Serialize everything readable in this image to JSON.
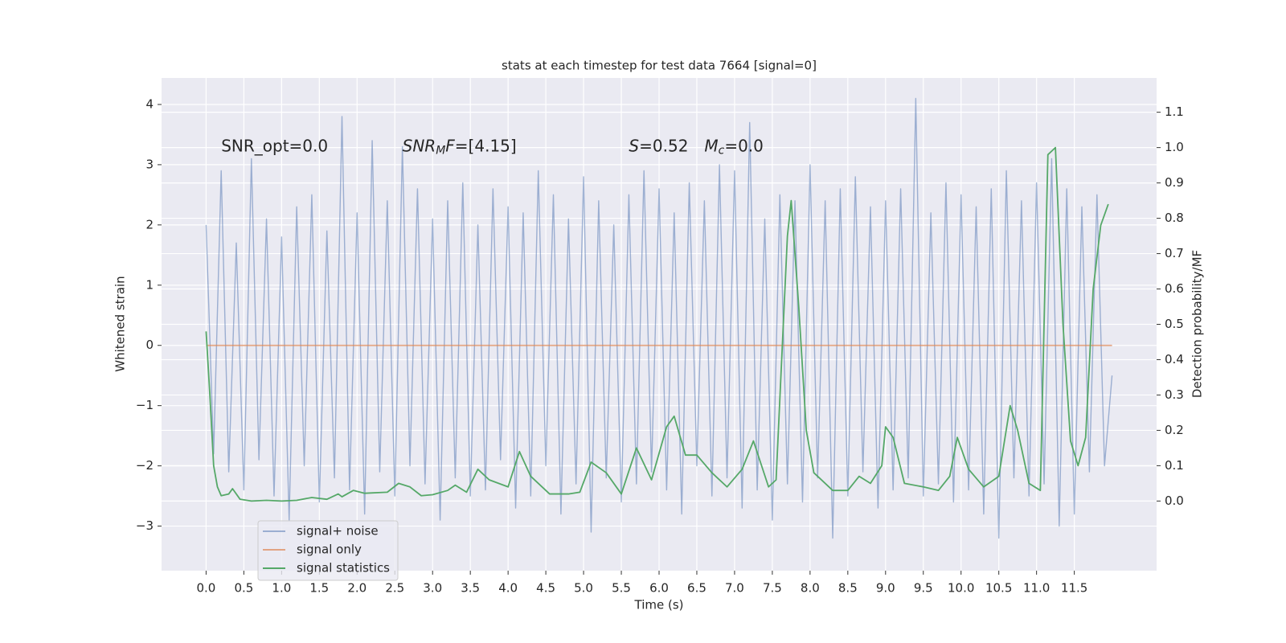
{
  "chart_data": {
    "type": "line",
    "title": "stats at each timestep for test data 7664 [signal=0]",
    "x_label": "Time (s)",
    "y_label": "Whitened strain",
    "y2_label": "Detection probability/MF",
    "xlim": [
      -0.59,
      12.59
    ],
    "ylim": [
      -3.74,
      4.44
    ],
    "y2lim": [
      -0.197,
      1.197
    ],
    "xticks": [
      {
        "value": 0,
        "label": "0.0"
      },
      {
        "value": 0.5,
        "label": "0.5"
      },
      {
        "value": 1,
        "label": "1.0"
      },
      {
        "value": 1.5,
        "label": "1.5"
      },
      {
        "value": 2,
        "label": "2.0"
      },
      {
        "value": 2.5,
        "label": "2.5"
      },
      {
        "value": 3,
        "label": "3.0"
      },
      {
        "value": 3.5,
        "label": "3.5"
      },
      {
        "value": 4,
        "label": "4.0"
      },
      {
        "value": 4.5,
        "label": "4.5"
      },
      {
        "value": 5,
        "label": "5.0"
      },
      {
        "value": 5.5,
        "label": "5.5"
      },
      {
        "value": 6,
        "label": "6.0"
      },
      {
        "value": 6.5,
        "label": "6.5"
      },
      {
        "value": 7,
        "label": "7.0"
      },
      {
        "value": 7.5,
        "label": "7.5"
      },
      {
        "value": 8,
        "label": "8.0"
      },
      {
        "value": 8.5,
        "label": "8.5"
      },
      {
        "value": 9,
        "label": "9.0"
      },
      {
        "value": 9.5,
        "label": "9.5"
      },
      {
        "value": 10,
        "label": "10.0"
      },
      {
        "value": 10.5,
        "label": "10.5"
      },
      {
        "value": 11,
        "label": "11.0"
      },
      {
        "value": 11.5,
        "label": "11.5"
      }
    ],
    "yticks": [
      {
        "value": -3,
        "label": "−3"
      },
      {
        "value": -2,
        "label": "−2"
      },
      {
        "value": -1,
        "label": "−1"
      },
      0,
      1,
      2,
      3,
      4
    ],
    "y2ticks": [
      {
        "value": 0,
        "label": "0.0"
      },
      {
        "value": 0.1,
        "label": "0.1"
      },
      {
        "value": 0.2,
        "label": "0.2"
      },
      {
        "value": 0.3,
        "label": "0.3"
      },
      {
        "value": 0.4,
        "label": "0.4"
      },
      {
        "value": 0.5,
        "label": "0.5"
      },
      {
        "value": 0.6,
        "label": "0.6"
      },
      {
        "value": 0.7,
        "label": "0.7"
      },
      {
        "value": 0.8,
        "label": "0.8"
      },
      {
        "value": 0.9,
        "label": "0.9"
      },
      {
        "value": 1,
        "label": "1.0"
      },
      {
        "value": 1.1,
        "label": "1.1"
      }
    ],
    "grid": true,
    "legend": "lower left",
    "annotations": [
      [
        {
          "text": "SNR_opt=0.0",
          "style": "normal"
        }
      ],
      [
        {
          "text": "SNR",
          "style": "italic"
        },
        {
          "text": "M",
          "style": "sub"
        },
        {
          "text": "F",
          "style": "italic"
        },
        {
          "text": "=[4.15]",
          "style": "normal"
        }
      ],
      [
        {
          "text": "S",
          "style": "italic"
        },
        {
          "text": "=0.52",
          "style": "normal"
        }
      ],
      [
        {
          "text": "M",
          "style": "italic"
        },
        {
          "text": "c",
          "style": "sub"
        },
        {
          "text": "=0.0",
          "style": "normal"
        }
      ]
    ],
    "series": [
      {
        "name": "signal+ noise",
        "color": "#4c72b0",
        "opacity": 0.5,
        "x": [
          0,
          0.1,
          0.2,
          0.3,
          0.4,
          0.5,
          0.6,
          0.7,
          0.8,
          0.9,
          1,
          1.1,
          1.2,
          1.3,
          1.4,
          1.5,
          1.6,
          1.7,
          1.8,
          1.9,
          2,
          2.1,
          2.2,
          2.3,
          2.4,
          2.5,
          2.6,
          2.7,
          2.8,
          2.9,
          3,
          3.1,
          3.2,
          3.3,
          3.4,
          3.5,
          3.6,
          3.7,
          3.8,
          3.9,
          4,
          4.1,
          4.2,
          4.3,
          4.4,
          4.5,
          4.6,
          4.7,
          4.8,
          4.9,
          5,
          5.1,
          5.2,
          5.3,
          5.4,
          5.5,
          5.6,
          5.7,
          5.8,
          5.9,
          6,
          6.1,
          6.2,
          6.3,
          6.4,
          6.5,
          6.6,
          6.7,
          6.8,
          6.9,
          7,
          7.1,
          7.2,
          7.3,
          7.4,
          7.5,
          7.6,
          7.7,
          7.8,
          7.9,
          8,
          8.1,
          8.2,
          8.3,
          8.4,
          8.5,
          8.6,
          8.7,
          8.8,
          8.9,
          9,
          9.1,
          9.2,
          9.3,
          9.4,
          9.5,
          9.6,
          9.7,
          9.8,
          9.9,
          10,
          10.1,
          10.2,
          10.3,
          10.4,
          10.5,
          10.6,
          10.7,
          10.8,
          10.9,
          11,
          11.1,
          11.2,
          11.3,
          11.4,
          11.5,
          11.6,
          11.7,
          11.8,
          11.9,
          12
        ],
        "values": [
          2.0,
          -1.8,
          2.9,
          -2.1,
          1.7,
          -2.4,
          3.1,
          -1.9,
          2.1,
          -2.5,
          1.8,
          -2.9,
          2.3,
          -2.0,
          2.5,
          -2.6,
          1.9,
          -2.2,
          3.8,
          -2.4,
          2.2,
          -2.8,
          3.4,
          -2.1,
          2.4,
          -2.5,
          3.3,
          -2.0,
          2.6,
          -2.3,
          2.1,
          -2.9,
          2.4,
          -2.2,
          2.7,
          -2.5,
          2.0,
          -2.4,
          2.6,
          -1.9,
          2.3,
          -2.7,
          2.2,
          -2.5,
          2.9,
          -2.0,
          2.5,
          -2.8,
          2.1,
          -2.3,
          2.8,
          -3.1,
          2.4,
          -2.2,
          2.0,
          -2.6,
          2.5,
          -2.3,
          2.9,
          -2.1,
          2.6,
          -2.4,
          2.2,
          -2.8,
          2.7,
          -2.0,
          2.4,
          -2.5,
          3.0,
          -2.2,
          2.9,
          -2.7,
          3.7,
          -2.4,
          2.1,
          -2.9,
          2.5,
          -2.3,
          2.4,
          -2.6,
          3.0,
          -2.2,
          2.4,
          -3.2,
          2.6,
          -2.5,
          2.8,
          -2.1,
          2.3,
          -2.7,
          2.4,
          -2.4,
          2.6,
          -2.2,
          4.1,
          -2.5,
          2.2,
          -2.3,
          2.7,
          -2.6,
          2.5,
          -2.4,
          2.3,
          -2.8,
          2.6,
          -3.2,
          2.9,
          -2.2,
          2.4,
          -2.5,
          2.7,
          -2.3,
          3.1,
          -3.0,
          2.6,
          -2.8,
          2.3,
          -2.1,
          2.5,
          -2.0,
          -0.5
        ]
      },
      {
        "name": "signal only",
        "color": "#dd8452",
        "opacity": 0.7,
        "x": [
          0,
          12
        ],
        "values": [
          0,
          0
        ]
      },
      {
        "name": "signal statistics",
        "color": "#55a868",
        "opacity": 1,
        "axis": "y2",
        "x": [
          0,
          0.05,
          0.1,
          0.15,
          0.2,
          0.3,
          0.35,
          0.45,
          0.6,
          0.8,
          1.0,
          1.2,
          1.4,
          1.6,
          1.75,
          1.8,
          1.95,
          2.1,
          2.4,
          2.55,
          2.7,
          2.85,
          3.0,
          3.2,
          3.3,
          3.45,
          3.6,
          3.75,
          4.0,
          4.15,
          4.3,
          4.55,
          4.8,
          4.95,
          5.1,
          5.3,
          5.5,
          5.7,
          5.9,
          6.1,
          6.2,
          6.35,
          6.5,
          6.7,
          6.9,
          7.1,
          7.25,
          7.45,
          7.55,
          7.7,
          7.75,
          7.85,
          7.95,
          8.05,
          8.3,
          8.5,
          8.65,
          8.8,
          8.95,
          9.0,
          9.1,
          9.25,
          9.5,
          9.7,
          9.85,
          9.95,
          10.1,
          10.3,
          10.5,
          10.65,
          10.75,
          10.9,
          11.05,
          11.15,
          11.25,
          11.35,
          11.45,
          11.55,
          11.65,
          11.75,
          11.85,
          11.95
        ],
        "values": [
          0.48,
          0.3,
          0.1,
          0.04,
          0.015,
          0.02,
          0.035,
          0.005,
          0.0,
          0.002,
          0.0,
          0.002,
          0.01,
          0.005,
          0.02,
          0.012,
          0.03,
          0.022,
          0.025,
          0.05,
          0.04,
          0.015,
          0.018,
          0.03,
          0.045,
          0.025,
          0.09,
          0.06,
          0.04,
          0.14,
          0.07,
          0.02,
          0.02,
          0.025,
          0.11,
          0.08,
          0.02,
          0.15,
          0.06,
          0.21,
          0.24,
          0.13,
          0.13,
          0.08,
          0.04,
          0.09,
          0.17,
          0.04,
          0.06,
          0.75,
          0.85,
          0.55,
          0.2,
          0.08,
          0.03,
          0.03,
          0.07,
          0.05,
          0.1,
          0.21,
          0.18,
          0.05,
          0.04,
          0.03,
          0.07,
          0.18,
          0.09,
          0.04,
          0.07,
          0.27,
          0.2,
          0.05,
          0.03,
          0.98,
          1.0,
          0.5,
          0.17,
          0.1,
          0.18,
          0.6,
          0.78,
          0.84
        ]
      }
    ]
  }
}
